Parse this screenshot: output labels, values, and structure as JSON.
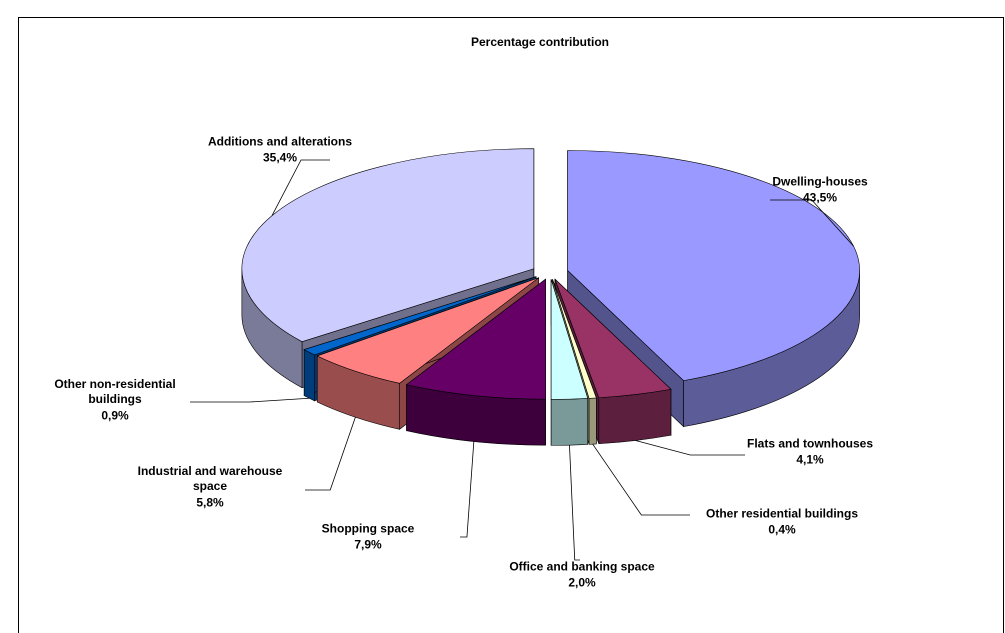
{
  "chart_data": {
    "type": "pie",
    "title": "Percentage contribution",
    "categories": [
      "Dwelling-houses",
      "Flats and townhouses",
      "Other residential buildings",
      "Office and banking space",
      "Shopping space",
      "Industrial and warehouse space",
      "Other non-residential buildings",
      "Additions and alterations"
    ],
    "values": [
      43.5,
      4.1,
      0.4,
      2.0,
      7.9,
      5.8,
      0.9,
      35.4
    ],
    "value_labels": [
      "43,5%",
      "4,1%",
      "0,4%",
      "2,0%",
      "7,9%",
      "5,8%",
      "0,9%",
      "35,4%"
    ],
    "colors": [
      "#9999ff",
      "#993366",
      "#ffffcc",
      "#ccffff",
      "#660066",
      "#ff8080",
      "#0066cc",
      "#ccccff"
    ]
  }
}
